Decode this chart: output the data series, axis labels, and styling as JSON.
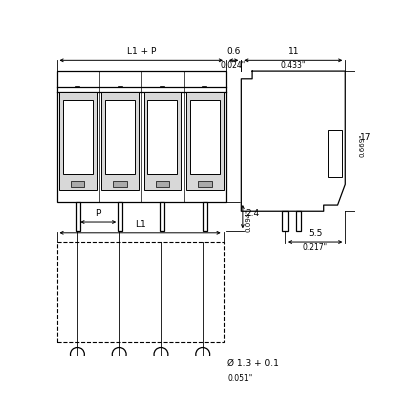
{
  "bg_color": "#ffffff",
  "line_color": "#000000",
  "dims": {
    "L1_P_label": "L1 + P",
    "d06_label": "0.6",
    "d06_inch": "0.024\"",
    "d11_label": "11",
    "d11_inch": "0.433\"",
    "d24_label": "2.4",
    "d24_inch": "0.094\"",
    "d17_label": "17",
    "d17_inch": "0.669\"",
    "d55_label": "5.5",
    "d55_inch": "0.217\"",
    "L1_label": "L1",
    "P_label": "P",
    "hole_label": "Ø 1.3 + 0.1",
    "hole_inch": "0.051\""
  }
}
